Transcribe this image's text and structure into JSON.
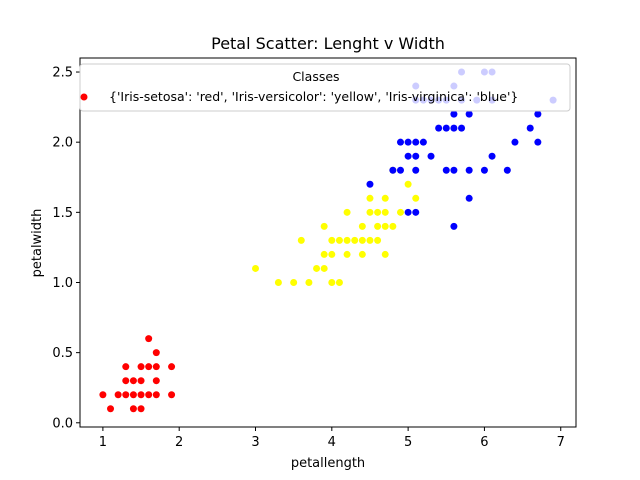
{
  "chart_data": {
    "type": "scatter",
    "title": "Petal Scatter: Lenght v Width",
    "xlabel": "petallength",
    "ylabel": "petalwidth",
    "xlim": [
      0.7,
      7.2
    ],
    "ylim": [
      -0.03,
      2.6
    ],
    "xticks": [
      1,
      2,
      3,
      4,
      5,
      6,
      7
    ],
    "xtick_labels": [
      "1",
      "2",
      "3",
      "4",
      "5",
      "6",
      "7"
    ],
    "yticks": [
      0.0,
      0.5,
      1.0,
      1.5,
      2.0,
      2.5
    ],
    "ytick_labels": [
      "0.0",
      "0.5",
      "1.0",
      "1.5",
      "2.0",
      "2.5"
    ],
    "grid": false,
    "legend": {
      "title": "Classes",
      "placement": "top-right",
      "entries": [
        {
          "label": "{'Iris-setosa': 'red', 'Iris-versicolor': 'yellow', 'Iris-virginica': 'blue'}",
          "color": "#ff0000"
        }
      ]
    },
    "colors": {
      "Iris-setosa": "#ff0000",
      "Iris-versicolor": "#ffff00",
      "Iris-virginica": "#0000ff"
    },
    "series": [
      {
        "name": "Iris-setosa",
        "color": "#ff0000",
        "points": [
          [
            1.0,
            0.2
          ],
          [
            1.1,
            0.1
          ],
          [
            1.2,
            0.2
          ],
          [
            1.3,
            0.2
          ],
          [
            1.3,
            0.3
          ],
          [
            1.3,
            0.4
          ],
          [
            1.4,
            0.1
          ],
          [
            1.4,
            0.2
          ],
          [
            1.4,
            0.3
          ],
          [
            1.5,
            0.1
          ],
          [
            1.5,
            0.2
          ],
          [
            1.5,
            0.3
          ],
          [
            1.5,
            0.4
          ],
          [
            1.6,
            0.2
          ],
          [
            1.6,
            0.4
          ],
          [
            1.6,
            0.6
          ],
          [
            1.7,
            0.2
          ],
          [
            1.7,
            0.3
          ],
          [
            1.7,
            0.4
          ],
          [
            1.7,
            0.5
          ],
          [
            1.9,
            0.2
          ],
          [
            1.9,
            0.4
          ]
        ]
      },
      {
        "name": "Iris-versicolor",
        "color": "#ffff00",
        "points": [
          [
            3.0,
            1.1
          ],
          [
            3.3,
            1.0
          ],
          [
            3.5,
            1.0
          ],
          [
            3.6,
            1.3
          ],
          [
            3.7,
            1.0
          ],
          [
            3.8,
            1.1
          ],
          [
            3.9,
            1.1
          ],
          [
            3.9,
            1.2
          ],
          [
            3.9,
            1.4
          ],
          [
            4.0,
            1.0
          ],
          [
            4.0,
            1.2
          ],
          [
            4.0,
            1.3
          ],
          [
            4.1,
            1.0
          ],
          [
            4.1,
            1.3
          ],
          [
            4.2,
            1.2
          ],
          [
            4.2,
            1.3
          ],
          [
            4.2,
            1.5
          ],
          [
            4.3,
            1.3
          ],
          [
            4.4,
            1.2
          ],
          [
            4.4,
            1.3
          ],
          [
            4.4,
            1.4
          ],
          [
            4.5,
            1.3
          ],
          [
            4.5,
            1.5
          ],
          [
            4.5,
            1.6
          ],
          [
            4.6,
            1.3
          ],
          [
            4.6,
            1.4
          ],
          [
            4.6,
            1.5
          ],
          [
            4.7,
            1.2
          ],
          [
            4.7,
            1.4
          ],
          [
            4.7,
            1.5
          ],
          [
            4.7,
            1.6
          ],
          [
            4.8,
            1.4
          ],
          [
            4.8,
            1.8
          ],
          [
            4.9,
            1.5
          ],
          [
            5.0,
            1.7
          ],
          [
            5.1,
            1.6
          ]
        ]
      },
      {
        "name": "Iris-virginica",
        "color": "#0000ff",
        "points": [
          [
            4.5,
            1.7
          ],
          [
            4.8,
            1.8
          ],
          [
            4.9,
            1.8
          ],
          [
            4.9,
            2.0
          ],
          [
            5.0,
            1.5
          ],
          [
            5.0,
            1.9
          ],
          [
            5.0,
            2.0
          ],
          [
            5.1,
            1.5
          ],
          [
            5.1,
            1.8
          ],
          [
            5.1,
            1.9
          ],
          [
            5.1,
            2.0
          ],
          [
            5.1,
            2.3
          ],
          [
            5.1,
            2.4
          ],
          [
            5.2,
            2.0
          ],
          [
            5.2,
            2.3
          ],
          [
            5.3,
            1.9
          ],
          [
            5.3,
            2.3
          ],
          [
            5.4,
            2.1
          ],
          [
            5.4,
            2.3
          ],
          [
            5.5,
            1.8
          ],
          [
            5.5,
            2.1
          ],
          [
            5.5,
            2.3
          ],
          [
            5.6,
            1.4
          ],
          [
            5.6,
            1.8
          ],
          [
            5.6,
            2.1
          ],
          [
            5.6,
            2.2
          ],
          [
            5.6,
            2.4
          ],
          [
            5.7,
            2.1
          ],
          [
            5.7,
            2.3
          ],
          [
            5.7,
            2.5
          ],
          [
            5.8,
            1.6
          ],
          [
            5.8,
            1.8
          ],
          [
            5.8,
            2.2
          ],
          [
            5.9,
            2.3
          ],
          [
            6.0,
            1.8
          ],
          [
            6.0,
            2.5
          ],
          [
            6.1,
            1.9
          ],
          [
            6.1,
            2.3
          ],
          [
            6.1,
            2.5
          ],
          [
            6.3,
            1.8
          ],
          [
            6.4,
            2.0
          ],
          [
            6.6,
            2.1
          ],
          [
            6.7,
            2.0
          ],
          [
            6.7,
            2.2
          ],
          [
            6.9,
            2.3
          ]
        ]
      }
    ]
  }
}
